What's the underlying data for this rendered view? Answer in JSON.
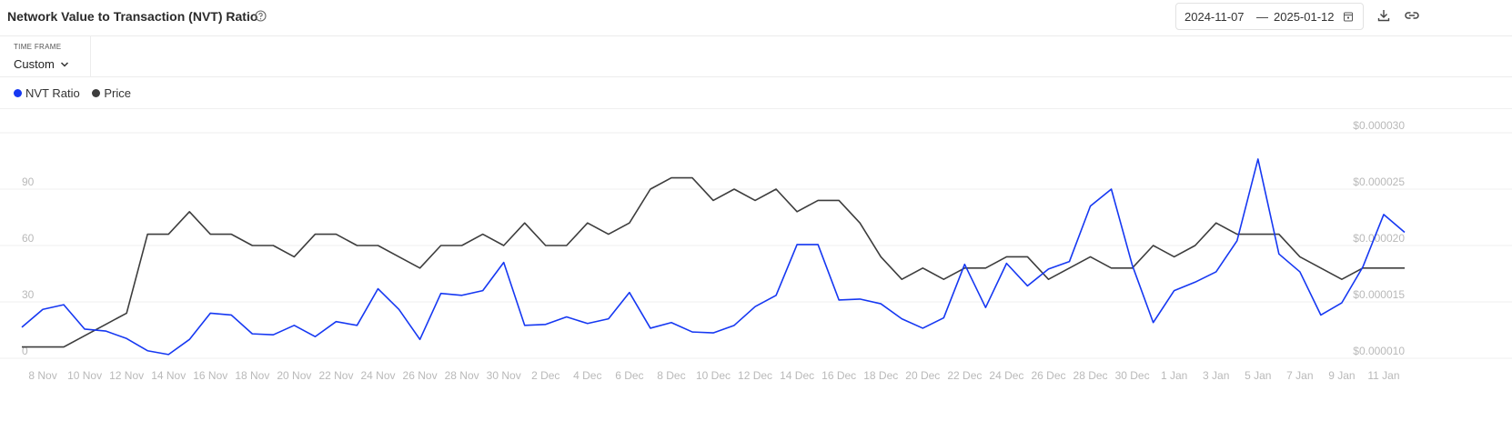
{
  "header": {
    "title": "Network Value to Transaction (NVT) Ratio",
    "date_start": "2024-11-07",
    "date_separator": "—",
    "date_end": "2025-01-12"
  },
  "time_frame": {
    "label": "TIME FRAME",
    "value": "Custom"
  },
  "chart_data": {
    "type": "line",
    "categories": [
      null,
      "8 Nov",
      null,
      "10 Nov",
      null,
      "12 Nov",
      null,
      "14 Nov",
      null,
      "16 Nov",
      null,
      "18 Nov",
      null,
      "20 Nov",
      null,
      "22 Nov",
      null,
      "24 Nov",
      null,
      "26 Nov",
      null,
      "28 Nov",
      null,
      "30 Nov",
      null,
      "2 Dec",
      null,
      "4 Dec",
      null,
      "6 Dec",
      null,
      "8 Dec",
      null,
      "10 Dec",
      null,
      "12 Dec",
      null,
      "14 Dec",
      null,
      "16 Dec",
      null,
      "18 Dec",
      null,
      "20 Dec",
      null,
      "22 Dec",
      null,
      "24 Dec",
      null,
      "26 Dec",
      null,
      "28 Dec",
      null,
      "30 Dec",
      null,
      "1 Jan",
      null,
      "3 Jan",
      null,
      "5 Jan",
      null,
      "7 Jan",
      null,
      "9 Jan",
      null,
      "11 Jan",
      null
    ],
    "series": [
      {
        "name": "NVT Ratio",
        "color": "#1638f2",
        "values": [
          16.5,
          26,
          28.5,
          15.5,
          14.5,
          10.5,
          4,
          2,
          10,
          24,
          23,
          13,
          12.5,
          17.5,
          11.5,
          19.5,
          17.5,
          37,
          26,
          10,
          34.5,
          33.5,
          36,
          51,
          17.5,
          18,
          22,
          18.5,
          21,
          35,
          16,
          19,
          14,
          13.5,
          17.5,
          27.5,
          33.5,
          60.5,
          60.5,
          31,
          31.5,
          29,
          21,
          16,
          21.5,
          50,
          27,
          50.5,
          38.5,
          47.5,
          51.5,
          81,
          90,
          49.5,
          19,
          36,
          40.5,
          46,
          62.5,
          106,
          55.5,
          46,
          23,
          29.5,
          48.5,
          76.5,
          67
        ]
      },
      {
        "name": "Price",
        "color": "#3d3d3d",
        "axis": "y2",
        "values": [
          1.1e-05,
          1.1e-05,
          1.1e-05,
          1.2e-05,
          1.3e-05,
          1.4e-05,
          2.1e-05,
          2.1e-05,
          2.3e-05,
          2.1e-05,
          2.1e-05,
          2e-05,
          2e-05,
          1.9e-05,
          2.1e-05,
          2.1e-05,
          2e-05,
          2e-05,
          1.9e-05,
          1.8e-05,
          2e-05,
          2e-05,
          2.1e-05,
          2e-05,
          2.2e-05,
          2e-05,
          2e-05,
          2.2e-05,
          2.1e-05,
          2.2e-05,
          2.5e-05,
          2.6e-05,
          2.6e-05,
          2.4e-05,
          2.5e-05,
          2.4e-05,
          2.5e-05,
          2.3e-05,
          2.4e-05,
          2.4e-05,
          2.2e-05,
          1.9e-05,
          1.7e-05,
          1.8e-05,
          1.7e-05,
          1.8e-05,
          1.8e-05,
          1.9e-05,
          1.9e-05,
          1.7e-05,
          1.8e-05,
          1.9e-05,
          1.8e-05,
          1.8e-05,
          2e-05,
          1.9e-05,
          2e-05,
          2.2e-05,
          2.1e-05,
          2.1e-05,
          2.1e-05,
          1.9e-05,
          1.8e-05,
          1.7e-05,
          1.8e-05,
          1.8e-05,
          1.8e-05
        ]
      }
    ],
    "ylim": [
      0,
      120
    ],
    "yticks": [
      0,
      30,
      60,
      90
    ],
    "y2lim": [
      1e-05,
      3e-05
    ],
    "y2ticks": [
      {
        "value": 1e-05,
        "label": "$0.000010"
      },
      {
        "value": 1.5e-05,
        "label": "$0.000015"
      },
      {
        "value": 2e-05,
        "label": "$0.000020"
      },
      {
        "value": 2.5e-05,
        "label": "$0.000025"
      },
      {
        "value": 3e-05,
        "label": "$0.000030"
      }
    ],
    "grid": true
  }
}
